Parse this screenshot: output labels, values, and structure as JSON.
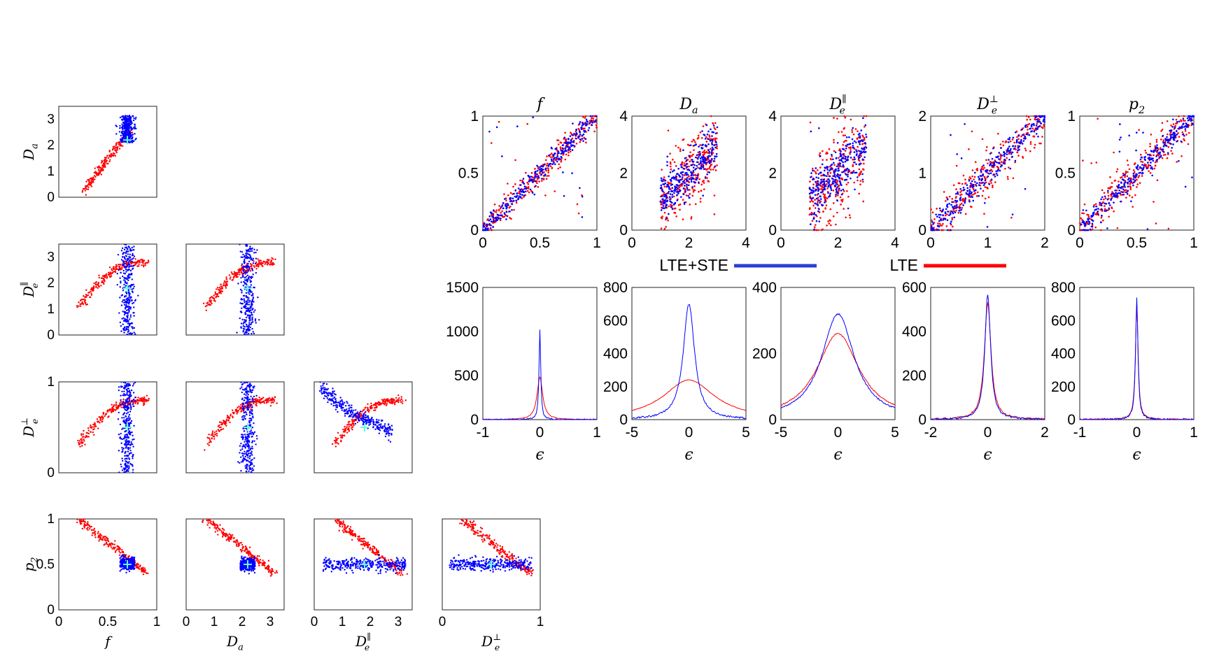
{
  "colors": {
    "lte": "#ff0000",
    "lte_ste": "#0000ff",
    "marker": "#66ffdd"
  },
  "legend": {
    "lte_ste_label": "LTE+STE",
    "lte_label": "LTE"
  },
  "chart_data": [
    {
      "id": "corner-matrix",
      "type": "scatter",
      "title": "",
      "grid": false,
      "parameters": [
        "f",
        "D_a",
        "D_e^∥",
        "D_e^⊥",
        "p_2"
      ],
      "param_labels": [
        "f",
        "D",
        "D",
        "D",
        "p"
      ],
      "param_subs": [
        "",
        "a",
        "e",
        "e",
        "2"
      ],
      "param_sups": [
        "",
        "",
        "∥",
        "⊥",
        ""
      ],
      "ranges": [
        [
          0,
          1
        ],
        [
          0,
          3.5
        ],
        [
          0,
          3.5
        ],
        [
          0,
          1
        ],
        [
          0,
          1
        ]
      ],
      "ticks": [
        {
          "values": [
            0,
            0.5,
            1
          ],
          "labels": [
            "0",
            "0.5",
            "1"
          ]
        },
        {
          "values": [
            0,
            1,
            2,
            3
          ],
          "labels": [
            "0",
            "1",
            "2",
            "3"
          ]
        },
        {
          "values": [
            0,
            1,
            2,
            3
          ],
          "labels": [
            "0",
            "1",
            "2",
            "3"
          ]
        },
        {
          "values": [
            0,
            1
          ],
          "labels": [
            "0",
            "1"
          ]
        },
        {
          "values": [
            0,
            0.5,
            1
          ],
          "labels": [
            "0",
            "0.5",
            "1"
          ]
        }
      ],
      "true_values": [
        0.7,
        2.2,
        1.8,
        0.5,
        0.5
      ]
    },
    {
      "id": "estimate-vs-truth",
      "type": "scatter",
      "title": "",
      "grid": false,
      "panels": [
        {
          "title": "f",
          "title_sub": "",
          "title_sup": "",
          "xlim": [
            0,
            1
          ],
          "ylim": [
            0,
            1
          ],
          "true_range": [
            0,
            1
          ],
          "xticks": [
            0,
            0.5,
            1
          ],
          "xtick_labels": [
            "0",
            "0.5",
            "1"
          ],
          "yticks": [
            0,
            0.5,
            1
          ],
          "ytick_labels": [
            "0",
            "0.5",
            "1"
          ],
          "spread": 0.04
        },
        {
          "title": "D",
          "title_sub": "a",
          "title_sup": "",
          "xlim": [
            0,
            4
          ],
          "ylim": [
            0,
            4
          ],
          "true_range": [
            1,
            3
          ],
          "xticks": [
            0,
            2,
            4
          ],
          "xtick_labels": [
            "0",
            "2",
            "4"
          ],
          "yticks": [
            0,
            2,
            4
          ],
          "ytick_labels": [
            "0",
            "2",
            "4"
          ],
          "spread": 0.35
        },
        {
          "title": "D",
          "title_sub": "e",
          "title_sup": "∥",
          "xlim": [
            0,
            4
          ],
          "ylim": [
            0,
            4
          ],
          "true_range": [
            1,
            3
          ],
          "xticks": [
            0,
            2,
            4
          ],
          "xtick_labels": [
            "0",
            "2",
            "4"
          ],
          "yticks": [
            0,
            2,
            4
          ],
          "ytick_labels": [
            "0",
            "2",
            "4"
          ],
          "spread": 0.45
        },
        {
          "title": "D",
          "title_sub": "e",
          "title_sup": "⊥",
          "xlim": [
            0,
            2
          ],
          "ylim": [
            0,
            2
          ],
          "true_range": [
            0,
            2
          ],
          "xticks": [
            0,
            1,
            2
          ],
          "xtick_labels": [
            "0",
            "1",
            "2"
          ],
          "yticks": [
            0,
            1,
            2
          ],
          "ytick_labels": [
            "0",
            "1",
            "2"
          ],
          "spread": 0.12
        },
        {
          "title": "p",
          "title_sub": "2",
          "title_sup": "",
          "xlim": [
            0,
            1
          ],
          "ylim": [
            0,
            1
          ],
          "true_range": [
            0,
            1
          ],
          "xticks": [
            0,
            0.5,
            1
          ],
          "xtick_labels": [
            "0",
            "0.5",
            "1"
          ],
          "yticks": [
            0,
            0.5,
            1
          ],
          "ytick_labels": [
            "0",
            "0.5",
            "1"
          ],
          "spread": 0.05
        }
      ]
    },
    {
      "id": "error-histograms",
      "type": "line",
      "title": "",
      "xlabel": "ϵ",
      "grid": false,
      "panels": [
        {
          "xlim": [
            -1,
            1
          ],
          "ylim": [
            0,
            1500
          ],
          "xticks": [
            -1,
            0,
            1
          ],
          "xtick_labels": [
            "-1",
            "0",
            "1"
          ],
          "yticks": [
            0,
            500,
            1000,
            1500
          ],
          "ytick_labels": [
            "0",
            "500",
            "1000",
            "1500"
          ],
          "series": [
            {
              "name": "LTE+STE",
              "peak": 1020,
              "width": 0.018
            },
            {
              "name": "LTE",
              "peak": 480,
              "width": 0.06
            }
          ]
        },
        {
          "xlim": [
            -5,
            5
          ],
          "ylim": [
            0,
            800
          ],
          "xticks": [
            -5,
            0,
            5
          ],
          "xtick_labels": [
            "-5",
            "0",
            "5"
          ],
          "yticks": [
            0,
            200,
            400,
            600,
            800
          ],
          "ytick_labels": [
            "0",
            "200",
            "400",
            "600",
            "800"
          ],
          "series": [
            {
              "name": "LTE+STE",
              "peak": 700,
              "width": 0.12
            },
            {
              "name": "LTE",
              "peak": 240,
              "width": 0.55
            }
          ]
        },
        {
          "xlim": [
            -5,
            5
          ],
          "ylim": [
            0,
            400
          ],
          "xticks": [
            -5,
            0,
            5
          ],
          "xtick_labels": [
            "-5",
            "0",
            "5"
          ],
          "yticks": [
            0,
            200,
            400
          ],
          "ytick_labels": [
            "0",
            "200",
            "400"
          ],
          "series": [
            {
              "name": "LTE+STE",
              "peak": 320,
              "width": 0.35
            },
            {
              "name": "LTE",
              "peak": 260,
              "width": 0.45
            }
          ]
        },
        {
          "xlim": [
            -2,
            2
          ],
          "ylim": [
            0,
            600
          ],
          "xticks": [
            -2,
            0,
            2
          ],
          "xtick_labels": [
            "-2",
            "0",
            "2"
          ],
          "yticks": [
            0,
            200,
            400,
            600
          ],
          "ytick_labels": [
            "0",
            "200",
            "400",
            "600"
          ],
          "series": [
            {
              "name": "LTE+STE",
              "peak": 570,
              "width": 0.06
            },
            {
              "name": "LTE",
              "peak": 530,
              "width": 0.07
            }
          ]
        },
        {
          "xlim": [
            -1,
            1
          ],
          "ylim": [
            0,
            800
          ],
          "xticks": [
            -1,
            0,
            1
          ],
          "xtick_labels": [
            "-1",
            "0",
            "1"
          ],
          "yticks": [
            0,
            200,
            400,
            600,
            800
          ],
          "ytick_labels": [
            "0",
            "200",
            "400",
            "600",
            "800"
          ],
          "series": [
            {
              "name": "LTE+STE",
              "peak": 735,
              "width": 0.025
            },
            {
              "name": "LTE",
              "peak": 700,
              "width": 0.028
            }
          ]
        }
      ]
    }
  ]
}
